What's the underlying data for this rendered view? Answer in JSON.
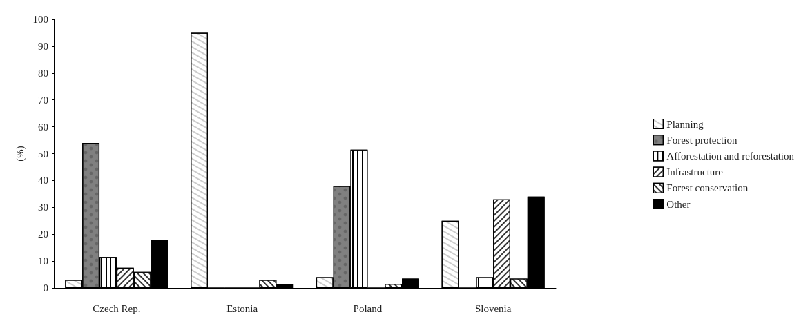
{
  "chart_data": {
    "type": "bar",
    "ylabel": "(%)",
    "categories": [
      "Czech Rep.",
      "Estonia",
      "Poland",
      "Slovenia"
    ],
    "series": [
      {
        "name": "Planning",
        "color": "#ffffff",
        "values": [
          3,
          95,
          4,
          25
        ]
      },
      {
        "name": "Forest protection",
        "color": "#808080",
        "values": [
          54,
          0,
          38,
          0
        ]
      },
      {
        "name": "Afforestation and reforestation",
        "color": "#ffffff",
        "values": [
          11.5,
          0,
          51.5,
          4
        ]
      },
      {
        "name": "Infrastructure",
        "color": "#ffffff",
        "values": [
          7.5,
          0,
          0,
          33
        ]
      },
      {
        "name": "Forest conservation",
        "color": "#ffffff",
        "values": [
          6,
          3,
          1.5,
          3.5
        ]
      },
      {
        "name": "Other",
        "color": "#000000",
        "values": [
          18,
          1.5,
          3.5,
          34
        ]
      }
    ],
    "ylim": [
      0,
      100
    ],
    "yticks": [
      0,
      10,
      20,
      30,
      40,
      50,
      60,
      70,
      80,
      90,
      100
    ],
    "grid": false,
    "legend": "right"
  }
}
